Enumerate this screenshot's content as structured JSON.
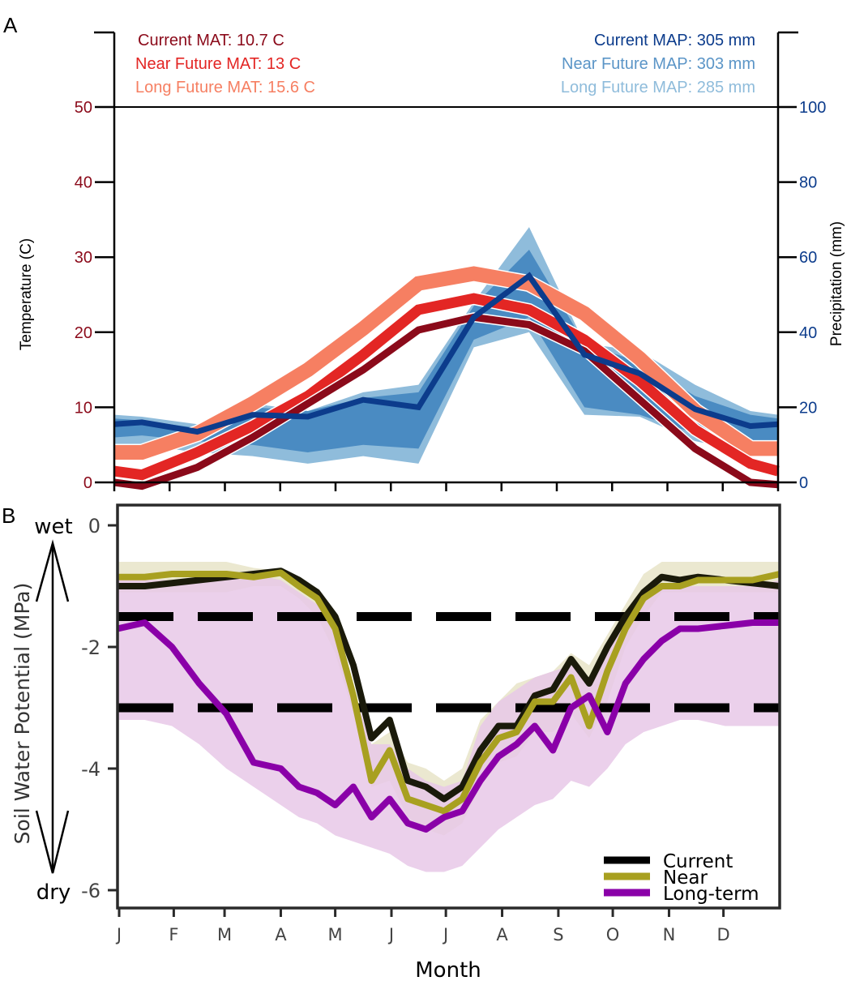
{
  "chart_data": [
    {
      "panel_label": "A",
      "type": "line",
      "x": [
        "J",
        "F",
        "M",
        "A",
        "M",
        "J",
        "J",
        "A",
        "S",
        "O",
        "N",
        "D"
      ],
      "xlabel": "Month",
      "ylabel_left": "Temperature (C)",
      "ylabel_right": "Precipitation (mm)",
      "ylim_left": [
        0,
        50
      ],
      "ylim_right": [
        0,
        100
      ],
      "yticks_left": [
        "0",
        "10",
        "20",
        "30",
        "40",
        "50"
      ],
      "yticks_right": [
        "0",
        "20",
        "40",
        "60",
        "80",
        "100"
      ],
      "annotations_left": [
        {
          "text": "Current MAT: 10.7 C",
          "color": "#8b0a1a"
        },
        {
          "text": "Near Future MAT: 13 C",
          "color": "#e32624"
        },
        {
          "text": "Long Future MAT: 15.6 C",
          "color": "#f67f62"
        }
      ],
      "annotations_right": [
        {
          "text": "Current MAP: 305 mm",
          "color": "#0c3c8c"
        },
        {
          "text": "Near Future MAP: 303 mm",
          "color": "#5b95c7"
        },
        {
          "text": "Long Future MAP: 285 mm",
          "color": "#8fbcdb"
        }
      ],
      "x_positions": [
        0,
        0.5,
        1.5,
        2.5,
        3.5,
        4.5,
        5.5,
        6.5,
        7.5,
        8.5,
        9.5,
        10.5,
        11.5,
        12
      ],
      "temperature_series": [
        {
          "name": "Long Future",
          "color": "#f67f62",
          "values": [
            4,
            4,
            6.5,
            10.5,
            15,
            20.5,
            26.5,
            27.8,
            26.5,
            22.5,
            16.5,
            9.5,
            4.5,
            4.5
          ]
        },
        {
          "name": "Near Future",
          "color": "#e32624",
          "values": [
            1.5,
            1,
            4,
            7.5,
            11.5,
            17,
            23,
            24.5,
            23,
            19,
            13.5,
            7,
            2.5,
            1.5
          ]
        },
        {
          "name": "Current",
          "color": "#8b0a1a",
          "values": [
            0,
            -0.5,
            2,
            6,
            10.5,
            15,
            20.3,
            22,
            21,
            17.5,
            11,
            4.5,
            0,
            -0.3
          ]
        }
      ],
      "precipitation_bands": [
        {
          "name": "Long Future range",
          "color": "#8fbcdb",
          "upper": [
            18,
            17.5,
            15.5,
            21,
            19,
            24,
            26,
            48,
            68,
            37,
            35,
            26,
            19,
            18
          ],
          "lower": [
            9,
            10,
            8,
            7,
            5,
            7,
            5,
            36,
            40,
            18,
            17.5,
            11,
            8,
            8.5
          ]
        },
        {
          "name": "Near Future range",
          "color": "#4a8bc2",
          "upper": [
            17,
            16.5,
            14.5,
            20,
            19,
            22.5,
            24,
            47,
            62,
            37,
            32,
            23,
            18,
            17
          ],
          "lower": [
            12,
            12.5,
            11,
            10,
            8,
            10,
            9,
            38,
            44,
            20,
            18,
            13,
            11,
            11
          ]
        }
      ],
      "precipitation_series": [
        {
          "name": "Current",
          "color": "#0c3c8c",
          "values": [
            15.5,
            16,
            13.5,
            18,
            17.5,
            22,
            20,
            44,
            55,
            34,
            29,
            19.5,
            15,
            15.5
          ]
        }
      ]
    },
    {
      "panel_label": "B",
      "type": "line",
      "x": [
        "J",
        "F",
        "M",
        "A",
        "M",
        "J",
        "J",
        "A",
        "S",
        "O",
        "N",
        "D"
      ],
      "xlabel": "Month",
      "ylabel": "Soil Water Potential (MPa)",
      "ylim": [
        -6.3,
        0.3
      ],
      "yticks": [
        "0",
        "-2",
        "-4",
        "-6"
      ],
      "arrow_labels": {
        "top": "wet",
        "bottom": "dry"
      },
      "reference_lines": [
        -1.5,
        -3.0
      ],
      "legend": {
        "placement": "bottom-right",
        "entries": [
          {
            "label": "Current",
            "color": "#000000"
          },
          {
            "label": "Near",
            "color": "#a8a020"
          },
          {
            "label": "Long-term",
            "color": "#8a00a8"
          }
        ]
      },
      "x_day_of_year": [
        0,
        15,
        30,
        45,
        60,
        75,
        90,
        100,
        110,
        120,
        130,
        140,
        150,
        160,
        170,
        180,
        190,
        200,
        210,
        220,
        230,
        240,
        250,
        260,
        270,
        280,
        290,
        300,
        310,
        320,
        335,
        350,
        365
      ],
      "series": [
        {
          "name": "Current",
          "color": "#1a1a0a",
          "values": [
            -1.0,
            -1.0,
            -0.95,
            -0.9,
            -0.85,
            -0.8,
            -0.75,
            -0.9,
            -1.1,
            -1.5,
            -2.3,
            -3.5,
            -3.2,
            -4.2,
            -4.3,
            -4.5,
            -4.3,
            -3.7,
            -3.3,
            -3.3,
            -2.8,
            -2.7,
            -2.2,
            -2.6,
            -2.0,
            -1.5,
            -1.1,
            -0.85,
            -0.9,
            -0.85,
            -0.9,
            -0.95,
            -1.0
          ]
        },
        {
          "name": "Near",
          "color": "#a8a020",
          "values": [
            -0.85,
            -0.85,
            -0.8,
            -0.8,
            -0.8,
            -0.85,
            -0.78,
            -1.0,
            -1.2,
            -1.7,
            -2.8,
            -4.2,
            -3.7,
            -4.5,
            -4.6,
            -4.7,
            -4.5,
            -3.9,
            -3.5,
            -3.4,
            -2.9,
            -2.9,
            -2.5,
            -3.3,
            -2.4,
            -1.7,
            -1.2,
            -1.0,
            -1.0,
            -0.9,
            -0.9,
            -0.9,
            -0.8
          ]
        },
        {
          "name": "Long-term",
          "color": "#8a00a8",
          "values": [
            -1.7,
            -1.6,
            -2.0,
            -2.6,
            -3.1,
            -3.9,
            -4.0,
            -4.3,
            -4.4,
            -4.6,
            -4.3,
            -4.8,
            -4.5,
            -4.9,
            -5.0,
            -4.8,
            -4.7,
            -4.2,
            -3.8,
            -3.6,
            -3.3,
            -3.7,
            -3.0,
            -2.8,
            -3.4,
            -2.6,
            -2.2,
            -1.9,
            -1.7,
            -1.7,
            -1.65,
            -1.6,
            -1.6
          ]
        }
      ],
      "bands": [
        {
          "name": "Current/Near range",
          "color": "#e8e4c8",
          "upper": [
            -0.6,
            -0.6,
            -0.6,
            -0.6,
            -0.6,
            -0.7,
            -0.75,
            -0.9,
            -1.2,
            -1.8,
            -2.8,
            -3.6,
            -3.4,
            -3.9,
            -4.0,
            -4.2,
            -4.0,
            -3.2,
            -2.9,
            -2.6,
            -2.5,
            -2.4,
            -2.1,
            -2.3,
            -1.8,
            -1.3,
            -0.8,
            -0.6,
            -0.6,
            -0.6,
            -0.6,
            -0.6,
            -0.6
          ],
          "lower": [
            -1.1,
            -1.1,
            -1.1,
            -1.1,
            -1.1,
            -1.0,
            -1.0,
            -1.2,
            -1.5,
            -2.1,
            -3.1,
            -4.3,
            -4.2,
            -4.8,
            -5.0,
            -5.1,
            -4.9,
            -4.3,
            -3.9,
            -3.8,
            -3.4,
            -3.4,
            -3.1,
            -3.5,
            -2.9,
            -2.0,
            -1.5,
            -1.1,
            -1.1,
            -1.1,
            -1.1,
            -1.1,
            -1.1
          ]
        },
        {
          "name": "Long-term range",
          "color": "#e8c8e8",
          "upper": [
            -0.9,
            -0.9,
            -0.9,
            -0.9,
            -0.85,
            -0.8,
            -0.9,
            -1.1,
            -1.3,
            -1.8,
            -2.7,
            -3.6,
            -3.6,
            -4.0,
            -4.2,
            -4.3,
            -4.2,
            -3.3,
            -2.9,
            -2.7,
            -2.5,
            -2.4,
            -2.3,
            -2.5,
            -2.0,
            -1.6,
            -1.2,
            -1.0,
            -1.0,
            -1.0,
            -1.0,
            -1.0,
            -0.9
          ],
          "lower": [
            -3.2,
            -3.2,
            -3.3,
            -3.6,
            -4.0,
            -4.3,
            -4.6,
            -4.8,
            -4.9,
            -5.1,
            -5.2,
            -5.3,
            -5.4,
            -5.6,
            -5.7,
            -5.7,
            -5.6,
            -5.3,
            -5.0,
            -4.8,
            -4.6,
            -4.5,
            -4.2,
            -4.3,
            -4.0,
            -3.6,
            -3.4,
            -3.3,
            -3.2,
            -3.2,
            -3.3,
            -3.3,
            -3.3
          ]
        }
      ]
    }
  ]
}
